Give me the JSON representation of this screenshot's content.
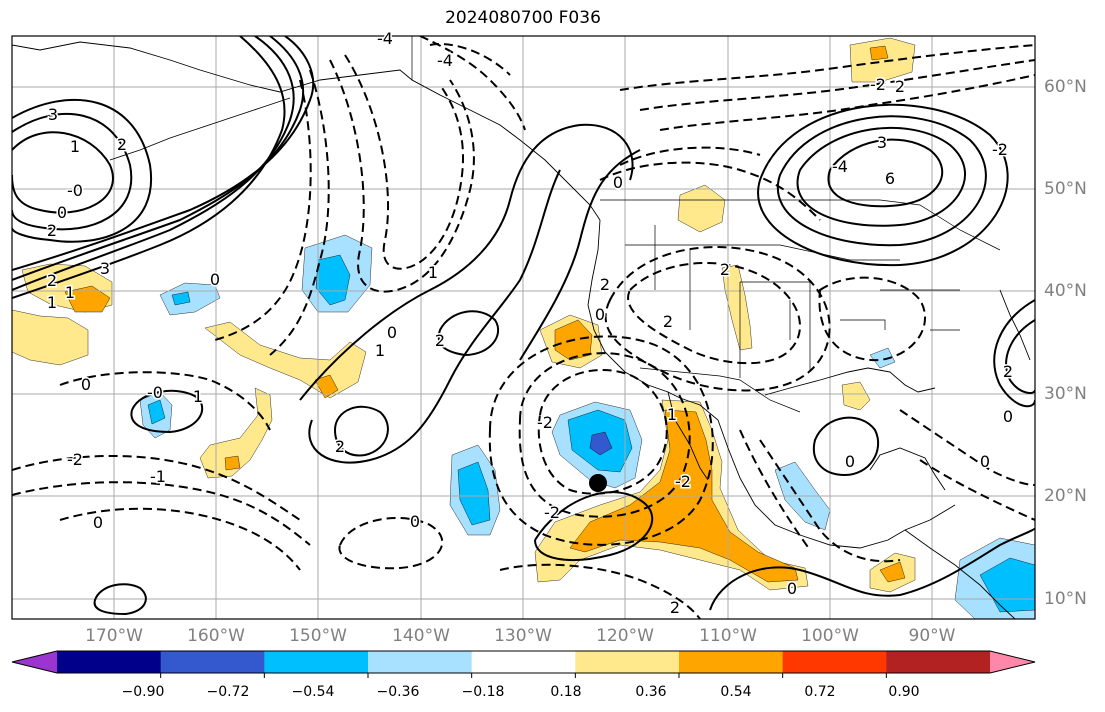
{
  "title": "2024080700 F036",
  "lat_labels": [
    "60°N",
    "50°N",
    "40°N",
    "30°N",
    "20°N",
    "10°N"
  ],
  "lon_labels": [
    "170°W",
    "160°W",
    "150°W",
    "140°W",
    "130°W",
    "120°W",
    "110°W",
    "100°W",
    "90°W"
  ],
  "colorbar": {
    "labels": [
      "−0.90",
      "−0.72",
      "−0.54",
      "−0.36",
      "−0.18",
      "0.18",
      "0.36",
      "0.54",
      "0.72",
      "0.90"
    ],
    "colors": [
      "#9c35d0",
      "#00008b",
      "#3459cf",
      "#00bfff",
      "#a8e0ff",
      "#ffffff",
      "#ffe98c",
      "#ffa500",
      "#ff3800",
      "#b22222",
      "#ff88aa"
    ]
  },
  "fill_colors": {
    "yellow": "#ffe98c",
    "orange": "#ffa500",
    "lightblue": "#a8e0ff",
    "blue": "#00bfff",
    "darkblue": "#3459cf"
  },
  "contour_labels": [
    "-4",
    "-4",
    "3",
    "1",
    "2",
    "-0",
    "0",
    "2",
    "3",
    "2",
    "1",
    "1",
    "0",
    "1",
    "2",
    "1",
    "0",
    "2",
    "2",
    "-2",
    "-4",
    "3",
    "6",
    "-2",
    "2",
    "-2",
    "0",
    "2",
    "-2",
    "-0",
    "1",
    "0",
    "-2",
    "-1",
    "0",
    "0",
    "-2",
    "2",
    "0",
    "0",
    "0",
    "2",
    "0",
    "0",
    "2",
    "1"
  ]
}
